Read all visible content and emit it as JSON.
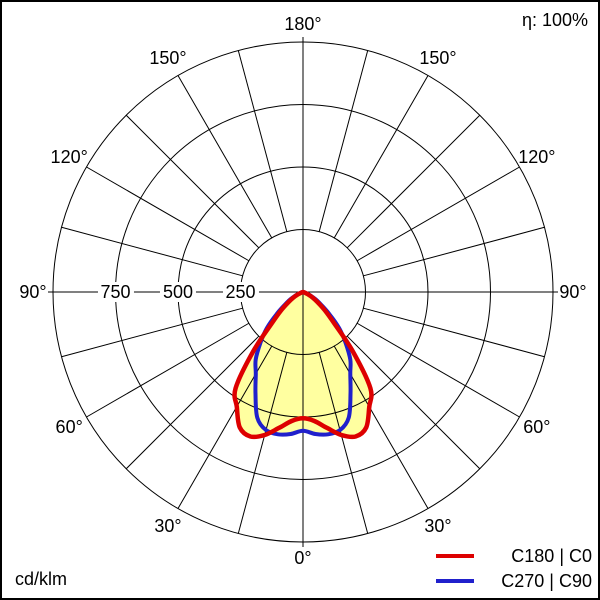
{
  "efficiency_label": "η: 100%",
  "unit_label": "cd/klm",
  "legend": [
    {
      "label": "C180 | C0",
      "color": "#dd0000"
    },
    {
      "label": "C270 | C90",
      "color": "#2020cc"
    }
  ],
  "chart_data": {
    "type": "polar",
    "title": "",
    "unit": "cd/klm",
    "efficiency": "η: 100%",
    "max_value": 1000,
    "ring_values": [
      250,
      500,
      750,
      1000
    ],
    "ring_labels_shown": [
      "250",
      "500",
      "750"
    ],
    "grid_step_deg": 15,
    "angle_label_degrees": [
      0,
      30,
      60,
      90,
      120,
      150,
      180
    ],
    "angle_labels_both_sides": true,
    "gamma_deg": [
      0,
      5,
      10,
      15,
      20,
      25,
      30,
      35,
      40,
      45,
      50,
      55,
      60,
      65,
      70,
      75,
      80,
      85,
      90
    ],
    "series": [
      {
        "name": "C180 | C0",
        "color": "#dd0000",
        "stroke_width": 4.5,
        "values": [
          505,
          518,
          552,
          592,
          615,
          598,
          530,
          470,
          310,
          175,
          115,
          72,
          45,
          22,
          8,
          0,
          0,
          0,
          0
        ]
      },
      {
        "name": "C270 | C90",
        "color": "#2020cc",
        "stroke_width": 4,
        "values": [
          555,
          570,
          578,
          572,
          535,
          450,
          378,
          330,
          265,
          205,
          138,
          88,
          58,
          32,
          15,
          4,
          0,
          0,
          0
        ]
      }
    ],
    "fill_color": "#ffffa0",
    "grid_color": "#000000",
    "legend_position": "bottom-right"
  }
}
